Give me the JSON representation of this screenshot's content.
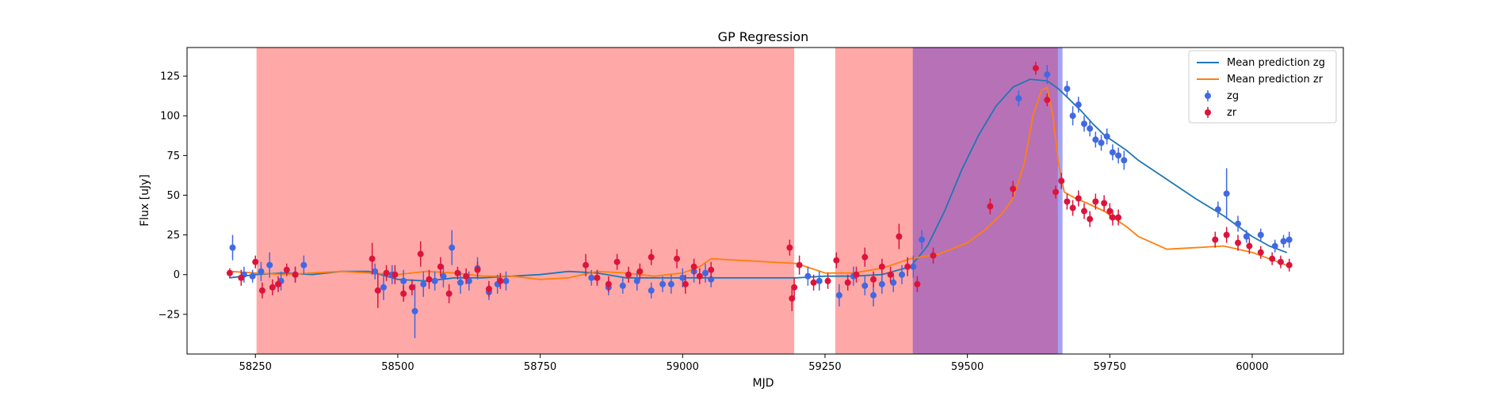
{
  "chart_data": {
    "type": "scatter",
    "title": "GP Regression",
    "xlabel": "MJD",
    "ylabel": "Flux [uJy]",
    "xlim": [
      58130,
      60160
    ],
    "ylim": [
      -50,
      143
    ],
    "xticks": [
      58250,
      58500,
      58750,
      59000,
      59250,
      59500,
      59750,
      60000
    ],
    "yticks": [
      -25,
      0,
      25,
      50,
      75,
      100,
      125
    ],
    "legend_position": "upper-right",
    "legend": [
      "Mean prediction zg",
      "Mean prediction zr",
      "zg",
      "zr"
    ],
    "shaded_regions": [
      {
        "x0": 58252,
        "x1": 59196,
        "color": "#ff0000",
        "alpha": 0.34
      },
      {
        "x0": 59268,
        "x1": 59404,
        "color": "#ff0000",
        "alpha": 0.34
      },
      {
        "x0": 59404,
        "x1": 59659,
        "color": "#8b1a8b",
        "alpha": 0.62
      },
      {
        "x0": 59659,
        "x1": 59667,
        "color": "#4a4ae8",
        "alpha": 0.5
      }
    ],
    "series": [
      {
        "name": "Mean prediction zg",
        "kind": "line",
        "color": "#1f77b4",
        "x": [
          58205,
          58250,
          58300,
          58350,
          58400,
          58450,
          58500,
          58550,
          58600,
          58650,
          58700,
          58750,
          58800,
          58850,
          58900,
          58950,
          59000,
          59050,
          59100,
          59150,
          59200,
          59250,
          59300,
          59350,
          59400,
          59430,
          59460,
          59490,
          59520,
          59550,
          59580,
          59610,
          59640,
          59660,
          59680,
          59700,
          59720,
          59740,
          59760,
          59780,
          59800,
          59850,
          59900,
          59950,
          60000,
          60030,
          60060
        ],
        "y": [
          -2,
          0,
          1,
          0,
          2,
          2,
          -3,
          -4,
          -2,
          -2,
          -1,
          0,
          2,
          1,
          -2,
          -2,
          -2,
          -2,
          -2,
          -2,
          -2,
          -1,
          -1,
          0,
          5,
          18,
          40,
          66,
          88,
          106,
          118,
          123,
          122,
          117,
          110,
          103,
          95,
          88,
          83,
          78,
          72,
          60,
          48,
          37,
          24,
          18,
          14
        ]
      },
      {
        "name": "Mean prediction zr",
        "kind": "line",
        "color": "#ff7f0e",
        "x": [
          58205,
          58250,
          58300,
          58350,
          58400,
          58450,
          58500,
          58550,
          58600,
          58650,
          58700,
          58750,
          58800,
          58850,
          58900,
          58950,
          59000,
          59030,
          59050,
          59100,
          59150,
          59200,
          59250,
          59300,
          59350,
          59400,
          59450,
          59500,
          59530,
          59560,
          59580,
          59600,
          59615,
          59630,
          59640,
          59650,
          59660,
          59670,
          59690,
          59710,
          59740,
          59760,
          59780,
          59800,
          59850,
          59900,
          59950,
          60000,
          60030,
          60060
        ],
        "y": [
          2,
          1,
          0,
          1,
          2,
          1,
          0,
          2,
          1,
          -1,
          -1,
          -3,
          -2,
          2,
          1,
          -1,
          1,
          5,
          10,
          9,
          8,
          7,
          1,
          1,
          4,
          10,
          13,
          20,
          28,
          38,
          48,
          70,
          100,
          116,
          118,
          100,
          70,
          52,
          48,
          45,
          40,
          35,
          30,
          24,
          16,
          17,
          18,
          14,
          10,
          6
        ]
      },
      {
        "name": "zg",
        "kind": "errorbar",
        "color": "#4169e1",
        "x": [
          58210,
          58230,
          58245,
          58260,
          58275,
          58295,
          58320,
          58335,
          58460,
          58475,
          58490,
          58510,
          58530,
          58545,
          58565,
          58580,
          58595,
          58610,
          58625,
          58640,
          58660,
          58675,
          58690,
          58840,
          58870,
          58895,
          58920,
          58945,
          58965,
          58980,
          59000,
          59020,
          59040,
          59050,
          59220,
          59240,
          59275,
          59300,
          59320,
          59335,
          59350,
          59370,
          59385,
          59405,
          59420,
          59590,
          59640,
          59675,
          59685,
          59695,
          59705,
          59715,
          59725,
          59735,
          59745,
          59755,
          59765,
          59775,
          59940,
          59955,
          59975,
          59990,
          60015,
          60040,
          60055,
          60065
        ],
        "y": [
          17,
          0,
          -1,
          2,
          6,
          -4,
          0,
          6,
          2,
          -8,
          0,
          -4,
          -23,
          -6,
          -4,
          -1,
          17,
          -5,
          -4,
          4,
          -11,
          -6,
          -4,
          -2,
          -8,
          -7,
          -4,
          -10,
          -6,
          -6,
          -2,
          2,
          1,
          -3,
          -1,
          -4,
          -13,
          -1,
          -7,
          -13,
          -6,
          -5,
          0,
          5,
          22,
          111,
          126,
          117,
          100,
          107,
          95,
          92,
          85,
          83,
          87,
          77,
          75,
          72,
          41,
          51,
          32,
          24,
          25,
          18,
          21,
          22
        ],
        "err": [
          8,
          5,
          4,
          6,
          8,
          6,
          5,
          6,
          5,
          8,
          6,
          7,
          17,
          8,
          6,
          7,
          11,
          7,
          6,
          7,
          5,
          6,
          6,
          5,
          5,
          5,
          6,
          5,
          5,
          6,
          6,
          7,
          6,
          5,
          6,
          6,
          7,
          6,
          6,
          7,
          6,
          6,
          6,
          7,
          6,
          5,
          6,
          5,
          6,
          5,
          5,
          5,
          5,
          5,
          5,
          5,
          5,
          6,
          5,
          16,
          5,
          4,
          4,
          4,
          4,
          5
        ]
      },
      {
        "name": "zr",
        "kind": "errorbar",
        "color": "#dc143c",
        "x": [
          58205,
          58225,
          58250,
          58262,
          58280,
          58290,
          58305,
          58320,
          58455,
          58465,
          58480,
          58495,
          58510,
          58525,
          58540,
          58555,
          58575,
          58590,
          58605,
          58620,
          58640,
          58660,
          58680,
          58830,
          58850,
          58870,
          58885,
          58905,
          58925,
          58945,
          58990,
          59005,
          59020,
          59030,
          59050,
          59188,
          59192,
          59196,
          59205,
          59230,
          59255,
          59270,
          59290,
          59305,
          59320,
          59335,
          59350,
          59365,
          59380,
          59395,
          59412,
          59440,
          59540,
          59580,
          59620,
          59640,
          59655,
          59665,
          59675,
          59685,
          59695,
          59705,
          59715,
          59725,
          59740,
          59750,
          59755,
          59765,
          59935,
          59955,
          59975,
          59995,
          60015,
          60035,
          60050,
          60065
        ],
        "y": [
          1,
          -2,
          8,
          -10,
          -8,
          -6,
          3,
          0,
          10,
          -10,
          1,
          0,
          -12,
          -8,
          13,
          -3,
          5,
          -12,
          1,
          -1,
          3,
          -9,
          -4,
          6,
          -2,
          -6,
          8,
          0,
          2,
          11,
          10,
          -6,
          5,
          -1,
          3,
          17,
          -15,
          -8,
          6,
          -5,
          -4,
          9,
          -5,
          0,
          11,
          -3,
          5,
          0,
          24,
          5,
          -6,
          12,
          43,
          54,
          130,
          110,
          52,
          59,
          46,
          42,
          48,
          40,
          35,
          46,
          45,
          40,
          36,
          36,
          22,
          25,
          20,
          18,
          14,
          10,
          8,
          6
        ],
        "err": [
          3,
          5,
          4,
          5,
          5,
          5,
          4,
          5,
          10,
          11,
          5,
          6,
          5,
          5,
          8,
          6,
          6,
          6,
          4,
          5,
          5,
          5,
          5,
          7,
          5,
          5,
          5,
          5,
          5,
          5,
          6,
          6,
          5,
          5,
          5,
          5,
          8,
          6,
          6,
          5,
          5,
          5,
          5,
          5,
          6,
          5,
          5,
          5,
          8,
          6,
          5,
          5,
          5,
          5,
          4,
          4,
          4,
          5,
          5,
          5,
          5,
          5,
          5,
          5,
          5,
          5,
          5,
          5,
          5,
          5,
          5,
          5,
          4,
          4,
          4,
          4
        ]
      }
    ]
  }
}
